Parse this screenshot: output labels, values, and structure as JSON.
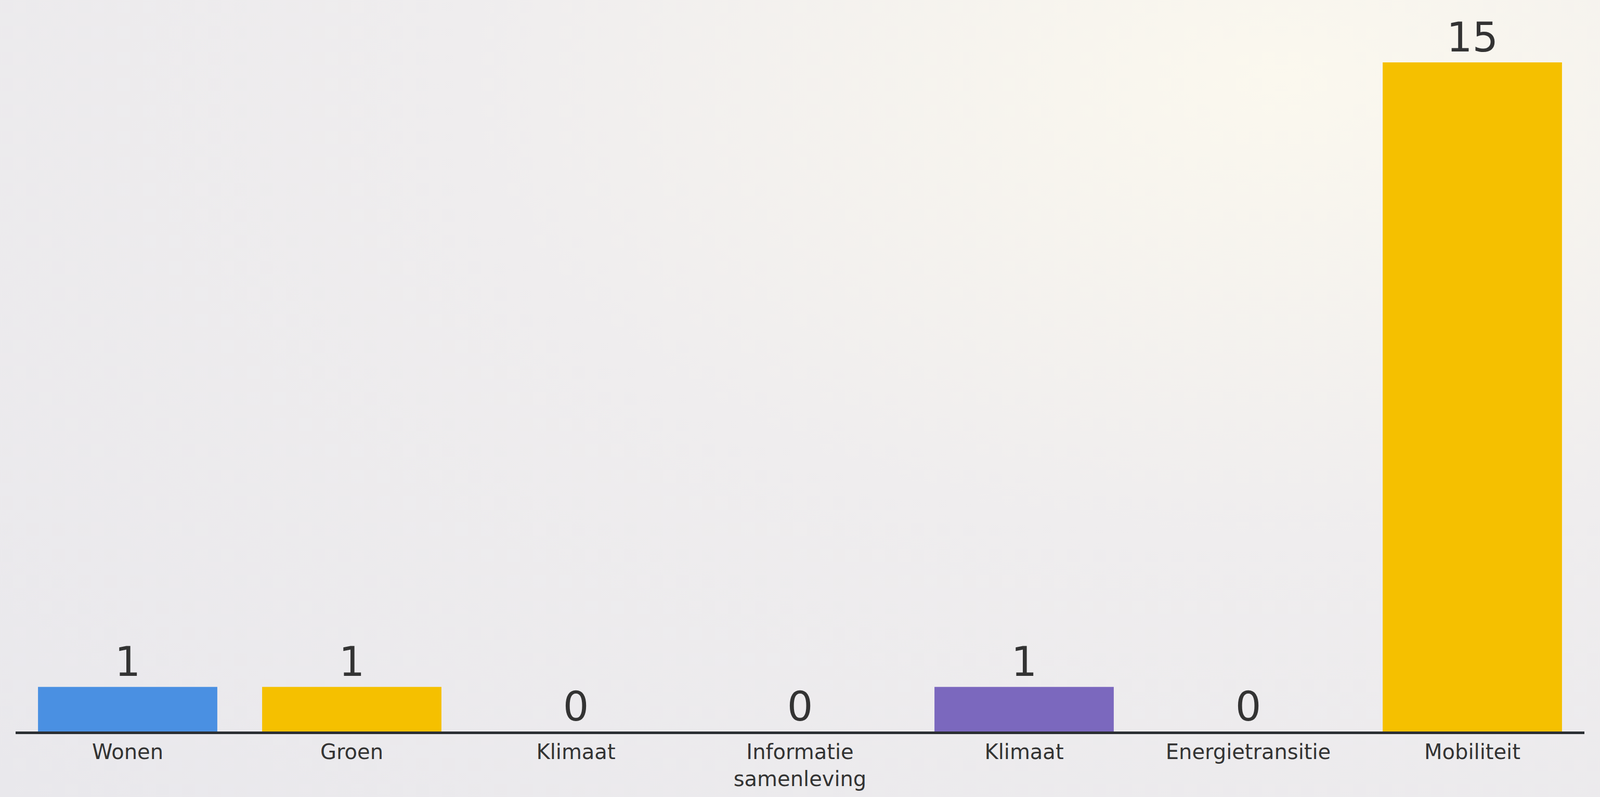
{
  "chart_data": {
    "type": "bar",
    "categories": [
      "Wonen",
      "Groen",
      "Klimaat",
      "Informatie samenleving",
      "Klimaat",
      "Energietransitie",
      "Mobiliteit"
    ],
    "values": [
      1,
      1,
      0,
      0,
      1,
      0,
      15
    ],
    "colors": [
      "#4a90e2",
      "#f5c000",
      "#3aa05a",
      "#e04848",
      "#7b68be",
      "#5bbfd6",
      "#f5c000"
    ],
    "ylim": [
      0,
      15
    ],
    "yticks": [],
    "grid": false,
    "data_labels": true,
    "tick_labels": "x"
  }
}
